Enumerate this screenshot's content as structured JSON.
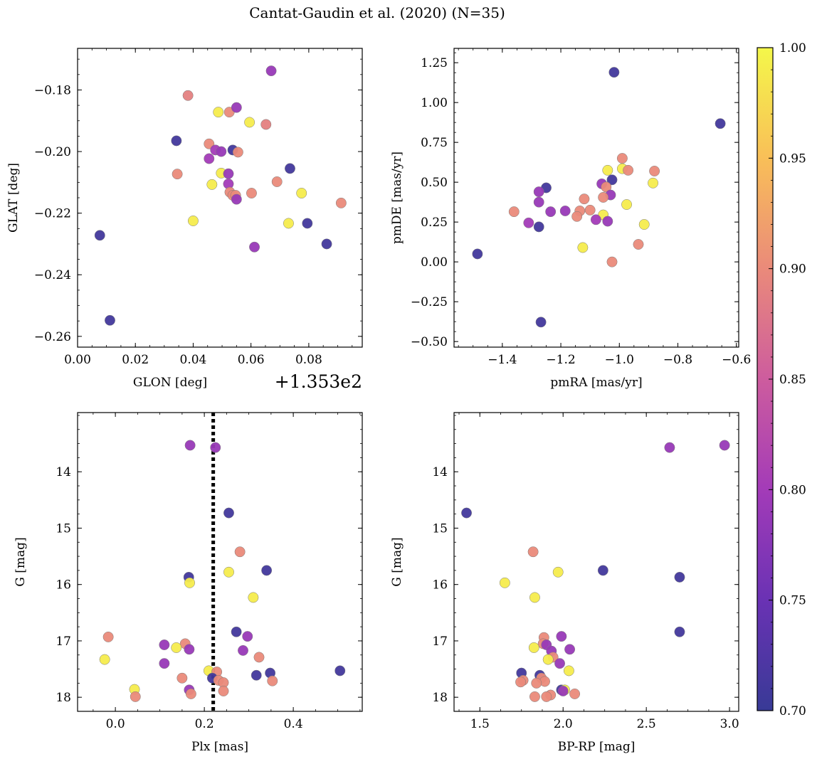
{
  "title": "Cantat-Gaudin et al. (2020) (N=35)",
  "colorbar": {
    "min": 0.7,
    "max": 1.0,
    "ticks": [
      "0.70",
      "0.75",
      "0.80",
      "0.85",
      "0.90",
      "0.95",
      "1.00"
    ],
    "colormap": "plasma"
  },
  "chart_data": [
    {
      "type": "scatter",
      "xlabel": "GLON [deg]",
      "ylabel": "GLAT [deg]",
      "offset_text": "+1.353e2",
      "x_offset": 135.3,
      "xlim": [
        0.0,
        0.0985
      ],
      "ylim": [
        -0.2635,
        -0.1665
      ],
      "xticks": [
        0.0,
        0.02,
        0.04,
        0.06,
        0.08
      ],
      "xtick_labels": [
        "0.00",
        "0.02",
        "0.04",
        "0.06",
        "0.08"
      ],
      "yticks": [
        -0.26,
        -0.24,
        -0.22,
        -0.2,
        -0.18
      ],
      "ytick_labels": [
        "−0.26",
        "−0.24",
        "−0.22",
        "−0.20",
        "−0.18"
      ],
      "points": [
        {
          "x": 0.067,
          "y": -0.1738,
          "c": 0.79
        },
        {
          "x": 0.0382,
          "y": -0.1818,
          "c": 0.89
        },
        {
          "x": 0.0487,
          "y": -0.1872,
          "c": 0.99
        },
        {
          "x": 0.0525,
          "y": -0.1872,
          "c": 0.9
        },
        {
          "x": 0.055,
          "y": -0.1857,
          "c": 0.79
        },
        {
          "x": 0.0595,
          "y": -0.1905,
          "c": 0.99
        },
        {
          "x": 0.0652,
          "y": -0.1912,
          "c": 0.89
        },
        {
          "x": 0.0342,
          "y": -0.1965,
          "c": 0.71
        },
        {
          "x": 0.0455,
          "y": -0.1975,
          "c": 0.9
        },
        {
          "x": 0.0477,
          "y": -0.1995,
          "c": 0.8
        },
        {
          "x": 0.0497,
          "y": -0.2,
          "c": 0.79
        },
        {
          "x": 0.0537,
          "y": -0.1995,
          "c": 0.71
        },
        {
          "x": 0.0555,
          "y": -0.2002,
          "c": 0.9
        },
        {
          "x": 0.0455,
          "y": -0.2023,
          "c": 0.8
        },
        {
          "x": 0.0735,
          "y": -0.2055,
          "c": 0.71
        },
        {
          "x": 0.0345,
          "y": -0.2073,
          "c": 0.9
        },
        {
          "x": 0.0497,
          "y": -0.207,
          "c": 0.99
        },
        {
          "x": 0.0522,
          "y": -0.2072,
          "c": 0.79
        },
        {
          "x": 0.0465,
          "y": -0.2107,
          "c": 0.99
        },
        {
          "x": 0.0522,
          "y": -0.2105,
          "c": 0.8
        },
        {
          "x": 0.069,
          "y": -0.2098,
          "c": 0.9
        },
        {
          "x": 0.0527,
          "y": -0.2132,
          "c": 0.9
        },
        {
          "x": 0.0537,
          "y": -0.2142,
          "c": 0.9
        },
        {
          "x": 0.0547,
          "y": -0.2142,
          "c": 0.9
        },
        {
          "x": 0.055,
          "y": -0.2155,
          "c": 0.79
        },
        {
          "x": 0.0602,
          "y": -0.2135,
          "c": 0.9
        },
        {
          "x": 0.0775,
          "y": -0.2135,
          "c": 0.99
        },
        {
          "x": 0.0912,
          "y": -0.2167,
          "c": 0.9
        },
        {
          "x": 0.04,
          "y": -0.2225,
          "c": 0.99
        },
        {
          "x": 0.073,
          "y": -0.2233,
          "c": 0.99
        },
        {
          "x": 0.0795,
          "y": -0.2233,
          "c": 0.71
        },
        {
          "x": 0.0077,
          "y": -0.2272,
          "c": 0.71
        },
        {
          "x": 0.0612,
          "y": -0.231,
          "c": 0.79
        },
        {
          "x": 0.0862,
          "y": -0.23,
          "c": 0.71
        },
        {
          "x": 0.0112,
          "y": -0.2548,
          "c": 0.71
        }
      ]
    },
    {
      "type": "scatter",
      "xlabel": "pmRA [mas/yr]",
      "ylabel": "pmDE [mas/yr]",
      "xlim": [
        -1.565,
        -0.592
      ],
      "ylim": [
        -0.535,
        1.34
      ],
      "xticks": [
        -1.4,
        -1.2,
        -1.0,
        -0.8,
        -0.6
      ],
      "xtick_labels": [
        "−1.4",
        "−1.2",
        "−1.0",
        "−0.8",
        "−0.6"
      ],
      "yticks": [
        -0.5,
        -0.25,
        0.0,
        0.25,
        0.5,
        0.75,
        1.0,
        1.25
      ],
      "ytick_labels": [
        "−0.50",
        "−0.25",
        "0.00",
        "0.25",
        "0.50",
        "0.75",
        "1.00",
        "1.25"
      ],
      "points": [
        {
          "x": -1.018,
          "y": 1.19,
          "c": 0.71
        },
        {
          "x": -0.655,
          "y": 0.868,
          "c": 0.71
        },
        {
          "x": -0.99,
          "y": 0.65,
          "c": 0.9
        },
        {
          "x": -0.99,
          "y": 0.585,
          "c": 0.99
        },
        {
          "x": -1.04,
          "y": 0.575,
          "c": 0.99
        },
        {
          "x": -0.97,
          "y": 0.575,
          "c": 0.9
        },
        {
          "x": -0.88,
          "y": 0.57,
          "c": 0.9
        },
        {
          "x": -1.025,
          "y": 0.515,
          "c": 0.71
        },
        {
          "x": -0.885,
          "y": 0.495,
          "c": 0.99
        },
        {
          "x": -1.06,
          "y": 0.49,
          "c": 0.79
        },
        {
          "x": -1.045,
          "y": 0.47,
          "c": 0.9
        },
        {
          "x": -1.25,
          "y": 0.465,
          "c": 0.71
        },
        {
          "x": -1.275,
          "y": 0.44,
          "c": 0.79
        },
        {
          "x": -1.03,
          "y": 0.42,
          "c": 0.79
        },
        {
          "x": -1.055,
          "y": 0.405,
          "c": 0.9
        },
        {
          "x": -1.12,
          "y": 0.395,
          "c": 0.9
        },
        {
          "x": -1.275,
          "y": 0.375,
          "c": 0.79
        },
        {
          "x": -0.975,
          "y": 0.36,
          "c": 0.99
        },
        {
          "x": -1.36,
          "y": 0.315,
          "c": 0.9
        },
        {
          "x": -1.185,
          "y": 0.32,
          "c": 0.79
        },
        {
          "x": -1.135,
          "y": 0.32,
          "c": 0.9
        },
        {
          "x": -1.1,
          "y": 0.325,
          "c": 0.9
        },
        {
          "x": -1.235,
          "y": 0.315,
          "c": 0.79
        },
        {
          "x": -1.145,
          "y": 0.285,
          "c": 0.9
        },
        {
          "x": -1.055,
          "y": 0.295,
          "c": 0.99
        },
        {
          "x": -1.08,
          "y": 0.265,
          "c": 0.8
        },
        {
          "x": -1.04,
          "y": 0.255,
          "c": 0.79
        },
        {
          "x": -1.31,
          "y": 0.245,
          "c": 0.8
        },
        {
          "x": -0.915,
          "y": 0.235,
          "c": 0.99
        },
        {
          "x": -1.275,
          "y": 0.22,
          "c": 0.71
        },
        {
          "x": -0.935,
          "y": 0.11,
          "c": 0.9
        },
        {
          "x": -1.125,
          "y": 0.09,
          "c": 0.99
        },
        {
          "x": -1.485,
          "y": 0.05,
          "c": 0.71
        },
        {
          "x": -1.025,
          "y": 0.0,
          "c": 0.9
        },
        {
          "x": -1.268,
          "y": -0.378,
          "c": 0.71
        }
      ]
    },
    {
      "type": "scatter",
      "xlabel": "Plx [mas]",
      "ylabel": "G [mag]",
      "y_inverted": true,
      "vline": 0.22,
      "xlim": [
        -0.085,
        0.555
      ],
      "ylim": [
        18.25,
        12.95
      ],
      "xticks": [
        0.0,
        0.2,
        0.4
      ],
      "xtick_labels": [
        "0.0",
        "0.2",
        "0.4"
      ],
      "yticks": [
        14,
        15,
        16,
        17,
        18
      ],
      "ytick_labels": [
        "14",
        "15",
        "16",
        "17",
        "18"
      ],
      "points": [
        {
          "x": 0.168,
          "y": 13.53,
          "c": 0.79
        },
        {
          "x": 0.225,
          "y": 13.57,
          "c": 0.79
        },
        {
          "x": 0.255,
          "y": 14.73,
          "c": 0.71
        },
        {
          "x": 0.28,
          "y": 15.42,
          "c": 0.9
        },
        {
          "x": 0.34,
          "y": 15.75,
          "c": 0.71
        },
        {
          "x": 0.255,
          "y": 15.78,
          "c": 0.99
        },
        {
          "x": 0.165,
          "y": 15.87,
          "c": 0.71
        },
        {
          "x": 0.167,
          "y": 15.97,
          "c": 0.99
        },
        {
          "x": 0.31,
          "y": 16.23,
          "c": 0.99
        },
        {
          "x": 0.272,
          "y": 16.84,
          "c": 0.71
        },
        {
          "x": 0.297,
          "y": 16.92,
          "c": 0.79
        },
        {
          "x": -0.016,
          "y": 16.93,
          "c": 0.9
        },
        {
          "x": 0.157,
          "y": 17.05,
          "c": 0.9
        },
        {
          "x": 0.11,
          "y": 17.07,
          "c": 0.79
        },
        {
          "x": 0.137,
          "y": 17.12,
          "c": 0.99
        },
        {
          "x": 0.166,
          "y": 17.15,
          "c": 0.79
        },
        {
          "x": 0.287,
          "y": 17.17,
          "c": 0.79
        },
        {
          "x": 0.323,
          "y": 17.29,
          "c": 0.9
        },
        {
          "x": -0.024,
          "y": 17.33,
          "c": 0.99
        },
        {
          "x": 0.11,
          "y": 17.4,
          "c": 0.79
        },
        {
          "x": 0.21,
          "y": 17.53,
          "c": 0.99
        },
        {
          "x": 0.228,
          "y": 17.55,
          "c": 0.9
        },
        {
          "x": 0.505,
          "y": 17.53,
          "c": 0.71
        },
        {
          "x": 0.348,
          "y": 17.57,
          "c": 0.71
        },
        {
          "x": 0.317,
          "y": 17.61,
          "c": 0.71
        },
        {
          "x": 0.15,
          "y": 17.66,
          "c": 0.9
        },
        {
          "x": 0.218,
          "y": 17.66,
          "c": 0.71
        },
        {
          "x": 0.232,
          "y": 17.7,
          "c": 0.9
        },
        {
          "x": 0.243,
          "y": 17.74,
          "c": 0.9
        },
        {
          "x": 0.353,
          "y": 17.71,
          "c": 0.9
        },
        {
          "x": 0.043,
          "y": 17.86,
          "c": 0.99
        },
        {
          "x": 0.166,
          "y": 17.87,
          "c": 0.79
        },
        {
          "x": 0.243,
          "y": 17.89,
          "c": 0.9
        },
        {
          "x": 0.17,
          "y": 17.94,
          "c": 0.9
        },
        {
          "x": 0.045,
          "y": 17.99,
          "c": 0.9
        }
      ]
    },
    {
      "type": "scatter",
      "xlabel": "BP-RP [mag]",
      "ylabel": "G [mag]",
      "y_inverted": true,
      "xlim": [
        1.345,
        3.055
      ],
      "ylim": [
        18.25,
        12.95
      ],
      "xticks": [
        1.5,
        2.0,
        2.5,
        3.0
      ],
      "xtick_labels": [
        "1.5",
        "2.0",
        "2.5",
        "3.0"
      ],
      "yticks": [
        14,
        15,
        16,
        17,
        18
      ],
      "ytick_labels": [
        "14",
        "15",
        "16",
        "17",
        "18"
      ],
      "points": [
        {
          "x": 2.64,
          "y": 13.57,
          "c": 0.79
        },
        {
          "x": 2.97,
          "y": 13.53,
          "c": 0.79
        },
        {
          "x": 1.42,
          "y": 14.73,
          "c": 0.71
        },
        {
          "x": 1.82,
          "y": 15.42,
          "c": 0.9
        },
        {
          "x": 2.24,
          "y": 15.75,
          "c": 0.71
        },
        {
          "x": 1.97,
          "y": 15.78,
          "c": 0.99
        },
        {
          "x": 2.7,
          "y": 15.87,
          "c": 0.71
        },
        {
          "x": 1.65,
          "y": 15.97,
          "c": 0.99
        },
        {
          "x": 1.83,
          "y": 16.23,
          "c": 0.99
        },
        {
          "x": 2.7,
          "y": 16.84,
          "c": 0.71
        },
        {
          "x": 1.99,
          "y": 16.92,
          "c": 0.79
        },
        {
          "x": 1.885,
          "y": 16.94,
          "c": 0.9
        },
        {
          "x": 1.88,
          "y": 17.05,
          "c": 0.9
        },
        {
          "x": 1.9,
          "y": 17.07,
          "c": 0.79
        },
        {
          "x": 1.825,
          "y": 17.12,
          "c": 0.99
        },
        {
          "x": 2.04,
          "y": 17.15,
          "c": 0.79
        },
        {
          "x": 1.93,
          "y": 17.18,
          "c": 0.79
        },
        {
          "x": 1.94,
          "y": 17.29,
          "c": 0.9
        },
        {
          "x": 1.91,
          "y": 17.33,
          "c": 0.99
        },
        {
          "x": 1.98,
          "y": 17.4,
          "c": 0.79
        },
        {
          "x": 2.035,
          "y": 17.53,
          "c": 0.99
        },
        {
          "x": 1.75,
          "y": 17.57,
          "c": 0.71
        },
        {
          "x": 1.86,
          "y": 17.61,
          "c": 0.71
        },
        {
          "x": 1.87,
          "y": 17.66,
          "c": 0.9
        },
        {
          "x": 1.76,
          "y": 17.7,
          "c": 0.9
        },
        {
          "x": 1.89,
          "y": 17.72,
          "c": 0.9
        },
        {
          "x": 1.745,
          "y": 17.73,
          "c": 0.9
        },
        {
          "x": 1.84,
          "y": 17.75,
          "c": 0.9
        },
        {
          "x": 1.99,
          "y": 17.87,
          "c": 0.71
        },
        {
          "x": 2.01,
          "y": 17.87,
          "c": 0.99
        },
        {
          "x": 2.0,
          "y": 17.89,
          "c": 0.79
        },
        {
          "x": 2.07,
          "y": 17.94,
          "c": 0.9
        },
        {
          "x": 1.925,
          "y": 17.96,
          "c": 0.9
        },
        {
          "x": 1.9,
          "y": 17.99,
          "c": 0.9
        },
        {
          "x": 1.83,
          "y": 17.99,
          "c": 0.9
        }
      ]
    }
  ]
}
